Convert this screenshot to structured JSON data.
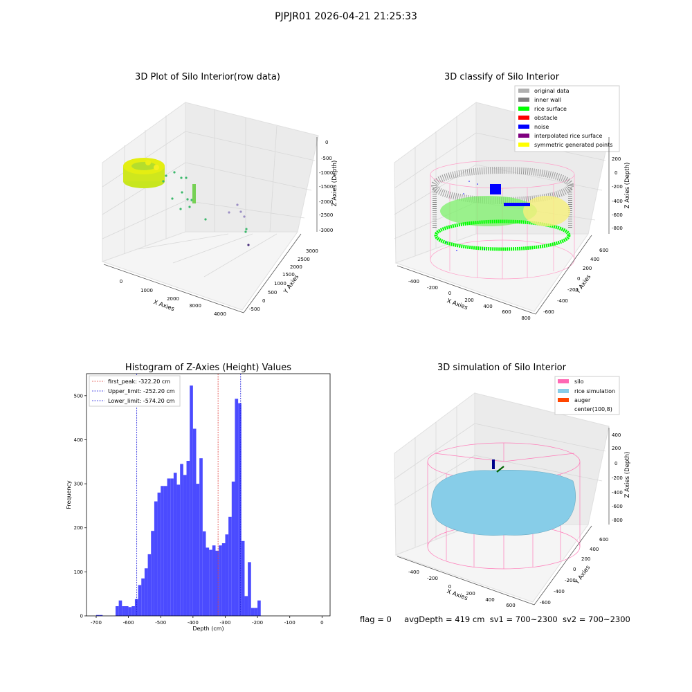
{
  "suptitle": "PJPJR01 2026-04-21 21:25:33",
  "footer": {
    "flag": "flag = 0",
    "avg": "avgDepth = 419 cm",
    "sv1": "sv1 = 700~2300",
    "sv2": "sv2 = 700~2300"
  },
  "chart_data": [
    {
      "type": "scatter",
      "title": "3D Plot of Silo Interior(row data)",
      "xlabel": "X Axies",
      "ylabel": "Y Axies",
      "zlabel": "Z Axies (Depth)",
      "xticks": [
        "0",
        "1000",
        "2000",
        "3000",
        "4000"
      ],
      "yticks": [
        "-500",
        "0",
        "500",
        "1000",
        "1500",
        "2000",
        "2500",
        "3000"
      ],
      "zticks": [
        "0",
        "-500",
        "-1000",
        "-1500",
        "-2000",
        "-2500",
        "-3000"
      ]
    },
    {
      "type": "scatter",
      "title": "3D classify of Silo Interior",
      "xlabel": "X Axies",
      "ylabel": "Y Axies",
      "zlabel": "Z Axies (Depth)",
      "xticks": [
        "-400",
        "-200",
        "0",
        "200",
        "400",
        "600",
        "800"
      ],
      "yticks": [
        "-600",
        "-400",
        "-200",
        "0",
        "200",
        "400",
        "600"
      ],
      "zticks": [
        "200",
        "0",
        "-200",
        "-400",
        "-600",
        "-800"
      ],
      "legend": [
        {
          "label": "original data",
          "color": "#b0b0b0"
        },
        {
          "label": "inner wall",
          "color": "#808080"
        },
        {
          "label": "rice surface",
          "color": "#00ff00"
        },
        {
          "label": "obstacle",
          "color": "#ff0000"
        },
        {
          "label": "noise",
          "color": "#0000ff"
        },
        {
          "label": "interpolated rice surface",
          "color": "#800080"
        },
        {
          "label": "symmetric generated points",
          "color": "#ffff00"
        }
      ],
      "legend_position": "top-right"
    },
    {
      "type": "bar",
      "title": "Histogram of Z-Axies (Height) Values",
      "xlabel": "Depth (cm)",
      "ylabel": "Frequency",
      "xlim": [
        -730,
        25
      ],
      "ylim": [
        0,
        550
      ],
      "xticks": [
        -700,
        -600,
        -500,
        -400,
        -300,
        -200,
        -100,
        0
      ],
      "yticks": [
        0,
        100,
        200,
        300,
        400,
        500
      ],
      "bin_start": -700,
      "bin_width": 10,
      "values": [
        2,
        2,
        0,
        0,
        0,
        0,
        22,
        35,
        22,
        22,
        20,
        22,
        38,
        70,
        85,
        108,
        140,
        193,
        260,
        280,
        295,
        295,
        312,
        312,
        325,
        298,
        345,
        320,
        352,
        523,
        425,
        300,
        358,
        192,
        155,
        150,
        160,
        148,
        160,
        165,
        185,
        225,
        305,
        493,
        483,
        170,
        45,
        122,
        18,
        18,
        35
      ],
      "color": "#4b4bff",
      "reference_lines": [
        {
          "label": "first_peak: -322.20 cm",
          "x": -322.2,
          "color": "#e0413b"
        },
        {
          "label": "Upper_limit: -252.20 cm",
          "x": -252.2,
          "color": "#1a1adb"
        },
        {
          "label": "Lower_limit: -574.20 cm",
          "x": -574.2,
          "color": "#1a1adb"
        }
      ],
      "legend_position": "top-left"
    },
    {
      "type": "scatter",
      "title": "3D simulation of Silo Interior",
      "xlabel": "X Axies",
      "ylabel": "Y Axies",
      "zlabel": "Z Axies (Depth)",
      "xticks": [
        "-400",
        "-200",
        "0",
        "200",
        "400",
        "600"
      ],
      "yticks": [
        "-600",
        "-400",
        "-200",
        "0",
        "200",
        "400",
        "600"
      ],
      "zticks": [
        "400",
        "200",
        "0",
        "-200",
        "-400",
        "-600",
        "-800"
      ],
      "legend": [
        {
          "label": "silo",
          "color": "#ff69b4"
        },
        {
          "label": "rice simulation",
          "color": "#87cde8"
        },
        {
          "label": "auger",
          "color": "#ff4500"
        },
        {
          "label": "center(100,8)",
          "color": "#ffffff"
        }
      ],
      "legend_position": "top-right"
    }
  ]
}
